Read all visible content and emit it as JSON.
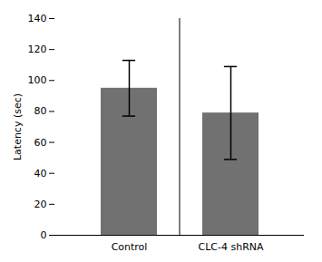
{
  "chart_data": {
    "type": "bar",
    "categories": [
      "Control",
      "CLC-4 shRNA"
    ],
    "values": [
      95,
      79
    ],
    "errors": [
      18,
      30
    ],
    "color": "#717171",
    "ylabel": "Latency (sec)",
    "ylim": [
      0,
      140
    ],
    "yticks": [
      0,
      20,
      40,
      60,
      80,
      100,
      120,
      140
    ],
    "grid": false
  }
}
